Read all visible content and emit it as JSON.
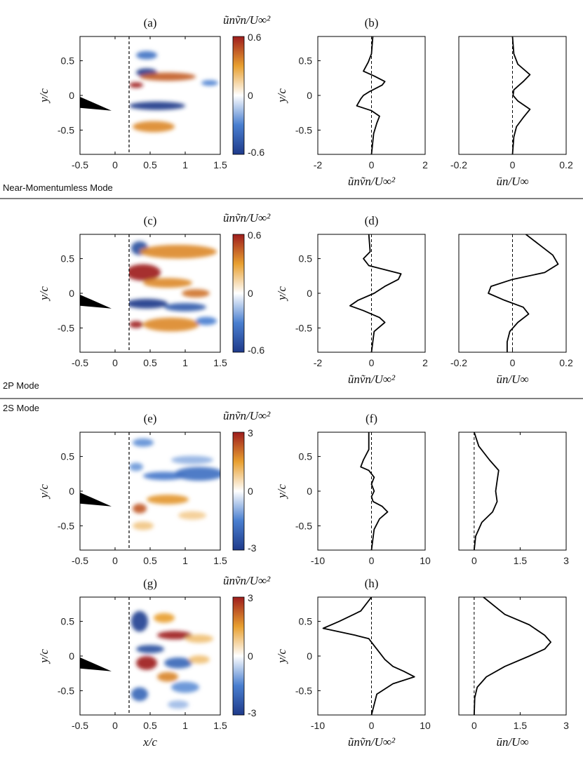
{
  "colors": {
    "negative": "#2a3c9a",
    "positive": "#9e1d1d",
    "neutral": "#ffffff",
    "line": "#000000",
    "wedge": "#000000"
  },
  "row_labels": [
    "Near-Momentumless Mode",
    "2P Mode",
    "2S Mode"
  ],
  "chart_data": [
    {
      "id": "a",
      "panel_label": "(a)",
      "type": "heatmap",
      "colorbar_label": "ũnṽn/U∞²",
      "clim": [
        -0.6,
        0.6
      ],
      "colorbar_ticks": [
        "0.6",
        "0",
        "-0.6"
      ],
      "xlabel": "",
      "ylabel": "y/c",
      "xlim": [
        -0.5,
        1.5
      ],
      "ylim": [
        -0.85,
        0.85
      ],
      "xticks": [
        -0.5,
        0,
        0.5,
        1,
        1.5
      ],
      "yticks": [
        0.5,
        0,
        -0.5
      ],
      "dashed_x": 0.2,
      "blobs": [
        {
          "x": 0.45,
          "y": 0.58,
          "sx": 0.15,
          "sy": 0.06,
          "v": -0.35
        },
        {
          "x": 0.45,
          "y": 0.33,
          "sx": 0.15,
          "sy": 0.06,
          "v": -0.6
        },
        {
          "x": 0.75,
          "y": 0.27,
          "sx": 0.4,
          "sy": 0.06,
          "v": 0.45
        },
        {
          "x": 0.3,
          "y": 0.15,
          "sx": 0.1,
          "sy": 0.04,
          "v": 0.6
        },
        {
          "x": 0.6,
          "y": -0.15,
          "sx": 0.4,
          "sy": 0.06,
          "v": -0.65
        },
        {
          "x": 1.35,
          "y": 0.18,
          "sx": 0.12,
          "sy": 0.04,
          "v": -0.3
        },
        {
          "x": 0.55,
          "y": -0.45,
          "sx": 0.3,
          "sy": 0.08,
          "v": 0.35
        }
      ]
    },
    {
      "id": "b",
      "panel_label": "(b)",
      "type": "line",
      "xlabel": "ũnṽn/U∞²",
      "ylabel": "y/c",
      "xlim": [
        -2,
        2
      ],
      "ylim": [
        -0.85,
        0.85
      ],
      "xticks": [
        -2,
        0,
        2
      ],
      "yticks": [
        0.5,
        0,
        -0.5
      ],
      "zero_line": 0,
      "series": [
        {
          "y": [
            0.85,
            0.6,
            0.48,
            0.35,
            0.28,
            0.2,
            0.15,
            0.05,
            0.0,
            -0.05,
            -0.15,
            -0.22,
            -0.3,
            -0.4,
            -0.55,
            -0.85
          ],
          "x": [
            0.05,
            0.0,
            -0.12,
            -0.3,
            0.1,
            0.5,
            0.4,
            -0.1,
            -0.3,
            -0.4,
            -0.55,
            0.0,
            0.3,
            0.2,
            0.08,
            0.0
          ]
        }
      ]
    },
    {
      "id": "b2",
      "panel_label": "",
      "type": "line",
      "xlabel": "ūn/U∞",
      "ylabel": "",
      "xlim": [
        -0.2,
        0.2
      ],
      "ylim": [
        -0.85,
        0.85
      ],
      "xticks": [
        -0.2,
        0,
        0.2
      ],
      "yticks": [],
      "zero_line": 0,
      "series": [
        {
          "y": [
            0.85,
            0.6,
            0.45,
            0.3,
            0.2,
            0.08,
            0.0,
            -0.08,
            -0.2,
            -0.32,
            -0.45,
            -0.6,
            -0.85
          ],
          "x": [
            0.0,
            0.005,
            0.02,
            0.065,
            0.04,
            0.005,
            0.002,
            0.02,
            0.065,
            0.04,
            0.015,
            0.005,
            0.0
          ]
        }
      ]
    },
    {
      "id": "c",
      "panel_label": "(c)",
      "type": "heatmap",
      "colorbar_label": "ũnṽn/U∞²",
      "clim": [
        -0.6,
        0.6
      ],
      "colorbar_ticks": [
        "0.6",
        "0",
        "-0.6"
      ],
      "xlabel": "",
      "ylabel": "y/c",
      "xlim": [
        -0.5,
        1.5
      ],
      "ylim": [
        -0.85,
        0.85
      ],
      "xticks": [
        -0.5,
        0,
        0.5,
        1,
        1.5
      ],
      "yticks": [
        0.5,
        0,
        -0.5
      ],
      "dashed_x": 0.2,
      "blobs": [
        {
          "x": 0.35,
          "y": 0.65,
          "sx": 0.12,
          "sy": 0.1,
          "v": -0.5
        },
        {
          "x": 0.9,
          "y": 0.6,
          "sx": 0.55,
          "sy": 0.1,
          "v": 0.35
        },
        {
          "x": 0.4,
          "y": 0.3,
          "sx": 0.25,
          "sy": 0.12,
          "v": 0.75
        },
        {
          "x": 0.75,
          "y": 0.15,
          "sx": 0.35,
          "sy": 0.07,
          "v": 0.35
        },
        {
          "x": 1.15,
          "y": 0.0,
          "sx": 0.2,
          "sy": 0.06,
          "v": 0.4
        },
        {
          "x": 0.45,
          "y": -0.15,
          "sx": 0.3,
          "sy": 0.07,
          "v": -0.7
        },
        {
          "x": 1.0,
          "y": -0.2,
          "sx": 0.3,
          "sy": 0.06,
          "v": -0.45
        },
        {
          "x": 0.3,
          "y": -0.45,
          "sx": 0.1,
          "sy": 0.05,
          "v": 0.7
        },
        {
          "x": 0.8,
          "y": -0.45,
          "sx": 0.4,
          "sy": 0.1,
          "v": 0.35
        },
        {
          "x": 1.3,
          "y": -0.4,
          "sx": 0.15,
          "sy": 0.06,
          "v": -0.3
        }
      ]
    },
    {
      "id": "d",
      "panel_label": "(d)",
      "type": "line",
      "xlabel": "ũnṽn/U∞²",
      "ylabel": "y/c",
      "xlim": [
        -2,
        2
      ],
      "ylim": [
        -0.85,
        0.85
      ],
      "xticks": [
        -2,
        0,
        2
      ],
      "yticks": [
        0.5,
        0,
        -0.5
      ],
      "zero_line": 0,
      "series": [
        {
          "y": [
            0.85,
            0.6,
            0.5,
            0.4,
            0.33,
            0.28,
            0.2,
            0.1,
            0.0,
            -0.1,
            -0.18,
            -0.25,
            -0.35,
            -0.42,
            -0.55,
            -0.85
          ],
          "x": [
            -0.1,
            -0.05,
            -0.3,
            -0.1,
            0.6,
            1.1,
            1.0,
            0.5,
            0.1,
            -0.5,
            -0.8,
            -0.3,
            0.3,
            0.5,
            0.1,
            0.0
          ]
        }
      ]
    },
    {
      "id": "d2",
      "panel_label": "",
      "type": "line",
      "xlabel": "ūn/U∞",
      "ylabel": "",
      "xlim": [
        -0.2,
        0.2
      ],
      "ylim": [
        -0.85,
        0.85
      ],
      "xticks": [
        -0.2,
        0,
        0.2
      ],
      "yticks": [],
      "zero_line": 0,
      "series": [
        {
          "y": [
            0.85,
            0.7,
            0.55,
            0.42,
            0.3,
            0.2,
            0.1,
            0.0,
            -0.1,
            -0.2,
            -0.3,
            -0.42,
            -0.55,
            -0.7,
            -0.85
          ],
          "x": [
            0.05,
            0.1,
            0.15,
            0.17,
            0.12,
            0.0,
            -0.08,
            -0.09,
            -0.03,
            0.04,
            0.06,
            0.02,
            -0.01,
            -0.02,
            -0.02
          ]
        }
      ]
    },
    {
      "id": "e",
      "panel_label": "(e)",
      "type": "heatmap",
      "colorbar_label": "ũnṽn/U∞²",
      "clim": [
        -3,
        3
      ],
      "colorbar_ticks": [
        "3",
        "0",
        "-3"
      ],
      "xlabel": "",
      "ylabel": "y/c",
      "xlim": [
        -0.5,
        1.5
      ],
      "ylim": [
        -0.85,
        0.85
      ],
      "xticks": [
        -0.5,
        0,
        0.5,
        1,
        1.5
      ],
      "yticks": [
        0.5,
        0,
        -0.5
      ],
      "dashed_x": 0.2,
      "blobs": [
        {
          "x": 0.4,
          "y": 0.7,
          "sx": 0.15,
          "sy": 0.06,
          "v": -1.3
        },
        {
          "x": 0.3,
          "y": 0.35,
          "sx": 0.1,
          "sy": 0.06,
          "v": -1.2
        },
        {
          "x": 0.7,
          "y": 0.22,
          "sx": 0.3,
          "sy": 0.06,
          "v": -1.6
        },
        {
          "x": 1.2,
          "y": 0.25,
          "sx": 0.35,
          "sy": 0.1,
          "v": -1.8
        },
        {
          "x": 1.1,
          "y": 0.45,
          "sx": 0.3,
          "sy": 0.06,
          "v": -0.9
        },
        {
          "x": 0.35,
          "y": -0.25,
          "sx": 0.1,
          "sy": 0.07,
          "v": 2.3
        },
        {
          "x": 0.75,
          "y": -0.12,
          "sx": 0.3,
          "sy": 0.07,
          "v": 1.6
        },
        {
          "x": 1.1,
          "y": -0.35,
          "sx": 0.2,
          "sy": 0.06,
          "v": 0.8
        },
        {
          "x": 0.4,
          "y": -0.5,
          "sx": 0.15,
          "sy": 0.06,
          "v": 0.9
        }
      ]
    },
    {
      "id": "f",
      "panel_label": "(f)",
      "type": "line",
      "xlabel": "",
      "ylabel": "y/c",
      "xlim": [
        -10,
        10
      ],
      "ylim": [
        -0.85,
        0.85
      ],
      "xticks": [
        -10,
        0,
        10
      ],
      "yticks": [
        0.5,
        0,
        -0.5
      ],
      "zero_line": 0,
      "series": [
        {
          "y": [
            0.85,
            0.6,
            0.45,
            0.35,
            0.3,
            0.2,
            0.1,
            0.0,
            -0.08,
            -0.15,
            -0.22,
            -0.3,
            -0.4,
            -0.55,
            -0.85
          ],
          "x": [
            -0.5,
            -0.5,
            -1.5,
            -2.0,
            -0.5,
            0.5,
            0.0,
            0.5,
            0.0,
            0.3,
            2.0,
            3.0,
            1.5,
            0.5,
            0.0
          ]
        }
      ]
    },
    {
      "id": "f2",
      "panel_label": "",
      "type": "line",
      "xlabel": "",
      "ylabel": "",
      "xlim": [
        -0.5,
        3
      ],
      "ylim": [
        -0.85,
        0.85
      ],
      "xticks": [
        0,
        1.5,
        3
      ],
      "yticks": [],
      "zero_line": 0,
      "series": [
        {
          "y": [
            0.85,
            0.65,
            0.45,
            0.3,
            0.15,
            0.0,
            -0.15,
            -0.3,
            -0.45,
            -0.65,
            -0.85
          ],
          "x": [
            0.0,
            0.15,
            0.5,
            0.8,
            0.75,
            0.7,
            0.75,
            0.6,
            0.25,
            0.05,
            0.0
          ]
        }
      ]
    },
    {
      "id": "g",
      "panel_label": "(g)",
      "type": "heatmap",
      "colorbar_label": "ũnṽn/U∞²",
      "clim": [
        -3,
        3
      ],
      "colorbar_ticks": [
        "3",
        "0",
        "-3"
      ],
      "xlabel": "x/c",
      "ylabel": "y/c",
      "xlim": [
        -0.5,
        1.5
      ],
      "ylim": [
        -0.85,
        0.85
      ],
      "xticks": [
        -0.5,
        0,
        0.5,
        1,
        1.5
      ],
      "yticks": [
        0.5,
        0,
        -0.5
      ],
      "dashed_x": 0.2,
      "blobs": [
        {
          "x": 0.35,
          "y": 0.5,
          "sx": 0.12,
          "sy": 0.15,
          "v": -2.8
        },
        {
          "x": 0.7,
          "y": 0.55,
          "sx": 0.15,
          "sy": 0.07,
          "v": 1.5
        },
        {
          "x": 0.85,
          "y": 0.3,
          "sx": 0.25,
          "sy": 0.06,
          "v": 3.0
        },
        {
          "x": 0.5,
          "y": 0.1,
          "sx": 0.2,
          "sy": 0.06,
          "v": -2.5
        },
        {
          "x": 1.2,
          "y": 0.25,
          "sx": 0.2,
          "sy": 0.06,
          "v": 1.0
        },
        {
          "x": 0.45,
          "y": -0.1,
          "sx": 0.15,
          "sy": 0.1,
          "v": 3.2
        },
        {
          "x": 0.9,
          "y": -0.1,
          "sx": 0.2,
          "sy": 0.08,
          "v": -2.0
        },
        {
          "x": 1.2,
          "y": -0.05,
          "sx": 0.15,
          "sy": 0.06,
          "v": 1.0
        },
        {
          "x": 0.75,
          "y": -0.3,
          "sx": 0.15,
          "sy": 0.07,
          "v": 1.8
        },
        {
          "x": 0.35,
          "y": -0.55,
          "sx": 0.12,
          "sy": 0.1,
          "v": -2.0
        },
        {
          "x": 1.0,
          "y": -0.45,
          "sx": 0.2,
          "sy": 0.08,
          "v": -1.3
        },
        {
          "x": 0.9,
          "y": -0.7,
          "sx": 0.15,
          "sy": 0.06,
          "v": -0.8
        }
      ]
    },
    {
      "id": "h",
      "panel_label": "(h)",
      "type": "line",
      "xlabel": "ũnṽn/U∞²",
      "ylabel": "y/c",
      "xlim": [
        -10,
        10
      ],
      "ylim": [
        -0.85,
        0.85
      ],
      "xticks": [
        -10,
        0,
        10
      ],
      "yticks": [
        0.5,
        0,
        -0.5
      ],
      "zero_line": 0,
      "series": [
        {
          "y": [
            0.85,
            0.65,
            0.5,
            0.4,
            0.3,
            0.25,
            0.15,
            0.05,
            -0.05,
            -0.15,
            -0.22,
            -0.3,
            -0.4,
            -0.55,
            -0.85
          ],
          "x": [
            0.0,
            -2.0,
            -6.0,
            -9.0,
            -3.0,
            -0.5,
            0.5,
            1.5,
            2.5,
            4.0,
            6.0,
            8.0,
            4.0,
            1.0,
            0.0
          ]
        }
      ]
    },
    {
      "id": "h2",
      "panel_label": "",
      "type": "line",
      "xlabel": "ūn/U∞",
      "ylabel": "",
      "xlim": [
        -0.5,
        3
      ],
      "ylim": [
        -0.85,
        0.85
      ],
      "xticks": [
        0,
        1.5,
        3
      ],
      "yticks": [],
      "zero_line": 0,
      "series": [
        {
          "y": [
            0.85,
            0.6,
            0.45,
            0.3,
            0.2,
            0.1,
            0.0,
            -0.15,
            -0.3,
            -0.45,
            -0.6,
            -0.85
          ],
          "x": [
            0.3,
            1.0,
            1.8,
            2.3,
            2.5,
            2.3,
            1.8,
            1.0,
            0.4,
            0.1,
            0.02,
            0.0
          ]
        }
      ]
    }
  ]
}
